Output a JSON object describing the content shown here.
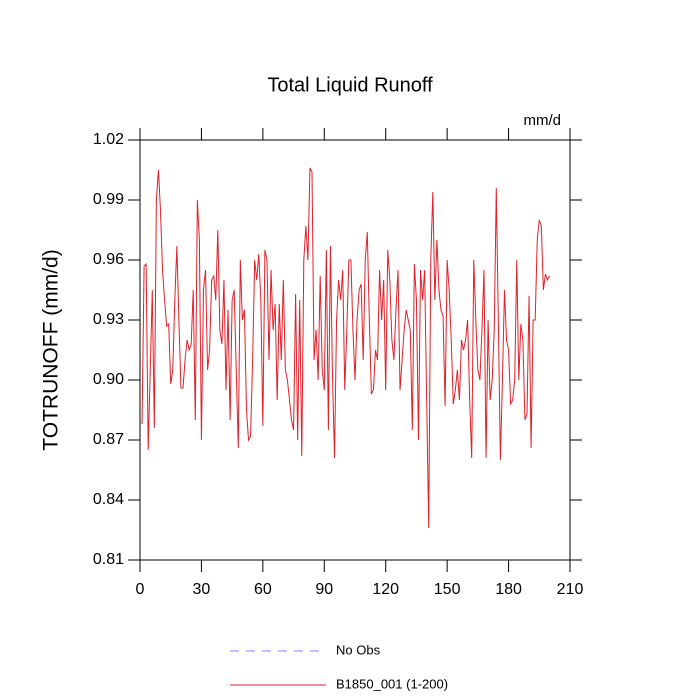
{
  "chart_data": {
    "type": "line",
    "title": "Total Liquid Runoff",
    "units": "mm/d",
    "ylabel": "TOTRUNOFF  (mm/d)",
    "xlim": [
      0,
      210
    ],
    "xticks": [
      0,
      30,
      60,
      90,
      120,
      150,
      180,
      210
    ],
    "ylim": [
      0.81,
      1.02
    ],
    "yticks": [
      0.81,
      0.84,
      0.87,
      {
        "value": 0.9,
        "label": "0.90"
      },
      0.93,
      0.96,
      0.99,
      1.02
    ],
    "legend_extra": {
      "name": "No Obs",
      "color": "#8080ff",
      "dashed": true
    },
    "x": [
      1,
      2,
      3,
      4,
      5,
      6,
      7,
      8,
      9,
      10,
      11,
      12,
      13,
      14,
      15,
      16,
      17,
      18,
      19,
      20,
      21,
      22,
      23,
      24,
      25,
      26,
      27,
      28,
      29,
      30,
      31,
      32,
      33,
      34,
      35,
      36,
      37,
      38,
      39,
      40,
      41,
      42,
      43,
      44,
      45,
      46,
      47,
      48,
      49,
      50,
      51,
      52,
      53,
      54,
      55,
      56,
      57,
      58,
      59,
      60,
      61,
      62,
      63,
      64,
      65,
      66,
      67,
      68,
      69,
      70,
      71,
      72,
      73,
      74,
      75,
      76,
      77,
      78,
      79,
      80,
      81,
      82,
      83,
      84,
      85,
      86,
      87,
      88,
      89,
      90,
      91,
      92,
      93,
      94,
      95,
      96,
      97,
      98,
      99,
      100,
      101,
      102,
      103,
      104,
      105,
      106,
      107,
      108,
      109,
      110,
      111,
      112,
      113,
      114,
      115,
      116,
      117,
      118,
      119,
      120,
      121,
      122,
      123,
      124,
      125,
      126,
      127,
      128,
      129,
      130,
      131,
      132,
      133,
      134,
      135,
      136,
      137,
      138,
      139,
      140,
      141,
      142,
      143,
      144,
      145,
      146,
      147,
      148,
      149,
      150,
      151,
      152,
      153,
      154,
      155,
      156,
      157,
      158,
      159,
      160,
      161,
      162,
      163,
      164,
      165,
      166,
      167,
      168,
      169,
      170,
      171,
      172,
      173,
      174,
      175,
      176,
      177,
      178,
      179,
      180,
      181,
      182,
      183,
      184,
      185,
      186,
      187,
      188,
      189,
      190,
      191,
      192,
      193,
      194,
      195,
      196,
      197,
      198,
      199,
      200
    ],
    "series": [
      {
        "name": "B1850_001 (1-200)",
        "color": "#e0202a",
        "values": [
          0.878,
          0.957,
          0.958,
          0.865,
          0.905,
          0.945,
          0.876,
          0.99,
          1.005,
          0.985,
          0.955,
          0.94,
          0.927,
          0.928,
          0.898,
          0.905,
          0.94,
          0.967,
          0.93,
          0.896,
          0.896,
          0.91,
          0.92,
          0.915,
          0.918,
          0.945,
          0.88,
          0.99,
          0.97,
          0.87,
          0.945,
          0.955,
          0.905,
          0.915,
          0.95,
          0.952,
          0.94,
          0.975,
          0.925,
          0.918,
          0.95,
          0.895,
          0.935,
          0.88,
          0.94,
          0.945,
          0.905,
          0.866,
          0.96,
          0.93,
          0.935,
          0.885,
          0.87,
          0.872,
          0.91,
          0.96,
          0.95,
          0.963,
          0.94,
          0.877,
          0.965,
          0.96,
          0.91,
          0.955,
          0.925,
          0.938,
          0.89,
          0.938,
          0.91,
          0.95,
          0.905,
          0.9,
          0.89,
          0.88,
          0.875,
          0.943,
          0.87,
          0.94,
          0.862,
          0.96,
          0.977,
          0.96,
          1.006,
          1.004,
          0.91,
          0.925,
          0.9,
          0.952,
          0.905,
          0.895,
          0.965,
          0.875,
          0.967,
          0.902,
          0.861,
          0.93,
          0.95,
          0.94,
          0.955,
          0.895,
          0.925,
          0.96,
          0.96,
          0.925,
          0.9,
          0.93,
          0.945,
          0.948,
          0.91,
          0.96,
          0.974,
          0.93,
          0.893,
          0.895,
          0.915,
          0.91,
          0.955,
          0.93,
          0.95,
          0.895,
          0.965,
          0.95,
          0.92,
          0.91,
          0.935,
          0.955,
          0.895,
          0.91,
          0.925,
          0.935,
          0.93,
          0.925,
          0.875,
          0.958,
          0.94,
          0.87,
          0.955,
          0.94,
          0.955,
          0.89,
          0.826,
          0.96,
          0.994,
          0.94,
          0.97,
          0.945,
          0.935,
          0.932,
          0.887,
          0.96,
          0.945,
          0.92,
          0.888,
          0.895,
          0.905,
          0.89,
          0.92,
          0.915,
          0.92,
          0.93,
          0.89,
          0.861,
          0.96,
          0.93,
          0.905,
          0.9,
          0.925,
          0.955,
          0.861,
          0.93,
          0.89,
          0.9,
          0.925,
          0.996,
          0.93,
          0.86,
          0.9,
          0.945,
          0.92,
          0.915,
          0.888,
          0.89,
          0.9,
          0.96,
          0.9,
          0.928,
          0.92,
          0.88,
          0.883,
          0.942,
          0.866,
          0.93,
          0.93,
          0.97,
          0.98,
          0.977,
          0.945,
          0.953,
          0.95,
          0.952
        ]
      }
    ]
  }
}
